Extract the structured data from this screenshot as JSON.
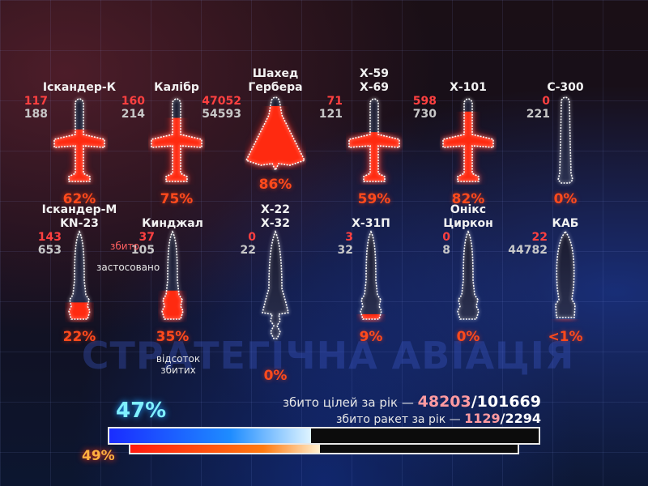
{
  "watermark": "СТРАТЕГІЧНА АВІАЦІЯ",
  "items": [
    {
      "name": [
        "Іскандер-К"
      ],
      "downed": "117",
      "launched": "188",
      "percent": "62%",
      "fill": 0.62,
      "icon": "cruise-missile"
    },
    {
      "name": [
        "Калібр"
      ],
      "downed": "160",
      "launched": "214",
      "percent": "75%",
      "fill": 0.75,
      "icon": "cruise-missile"
    },
    {
      "name": [
        "Шахед",
        "Гербера"
      ],
      "downed": "47052",
      "launched": "54593",
      "percent": "86%",
      "fill": 0.86,
      "icon": "drone"
    },
    {
      "name": [
        "Х-59",
        "Х-69"
      ],
      "downed": "71",
      "launched": "121",
      "percent": "59%",
      "fill": 0.59,
      "icon": "cruise-missile"
    },
    {
      "name": [
        "Х-101"
      ],
      "downed": "598",
      "launched": "730",
      "percent": "82%",
      "fill": 0.82,
      "icon": "cruise-missile"
    },
    {
      "name": [
        "С-300"
      ],
      "downed": "0",
      "launched": "221",
      "percent": "0%",
      "fill": 0,
      "icon": "sam-missile"
    },
    {
      "name": [
        "Іскандер-М",
        "KN-23"
      ],
      "downed": "143",
      "launched": "653",
      "percent": "22%",
      "fill": 0.22,
      "icon": "ballistic-missile"
    },
    {
      "name": [
        "Кинджал"
      ],
      "downed": "37",
      "launched": "105",
      "percent": "35%",
      "fill": 0.35,
      "icon": "ballistic-missile"
    },
    {
      "name": [
        "Х-22",
        "Х-32"
      ],
      "downed": "0",
      "launched": "22",
      "percent": "0%",
      "fill": 0,
      "icon": "heavy-missile"
    },
    {
      "name": [
        "Х-31П"
      ],
      "downed": "3",
      "launched": "32",
      "percent": "9%",
      "fill": 0.09,
      "icon": "ballistic-missile"
    },
    {
      "name": [
        "Онікс",
        "Циркон"
      ],
      "downed": "0",
      "launched": "8",
      "percent": "0%",
      "fill": 0,
      "icon": "ballistic-missile"
    },
    {
      "name": [
        "КАБ"
      ],
      "downed": "22",
      "launched": "44782",
      "percent": "<1%",
      "fill": 0.005,
      "icon": "guided-bomb"
    }
  ],
  "legend": {
    "downed_label": "збито",
    "launched_label": "застосовано",
    "percent_label": "відсоток збитих"
  },
  "totals": {
    "targets_label": "збито цілей за рік — ",
    "targets_downed": "48203",
    "targets_total": "/101669",
    "missiles_label": "збито ракет за рік — ",
    "missiles_downed": "1129",
    "missiles_total": "/2294",
    "targets_percent": "47%",
    "targets_fill": 0.47,
    "missiles_percent": "49%",
    "missiles_fill": 0.49
  },
  "colors": {
    "downed": "#ff4040",
    "launched": "#c8c8c8",
    "percent": "#ff4a1c",
    "targets_bar": "#1e5bff",
    "missiles_bar": "#ff3a10"
  }
}
